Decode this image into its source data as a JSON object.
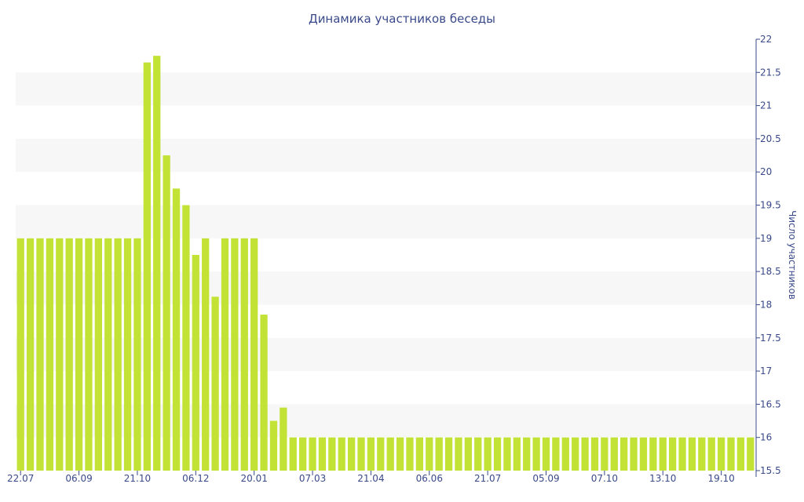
{
  "chart_data": {
    "type": "bar",
    "title": "Динамика участников беседы",
    "ylabel": "Число участников",
    "ylim": [
      15.5,
      22
    ],
    "y_axis_side": "right",
    "y_ticks": [
      "15.5",
      "16",
      "16.5",
      "17",
      "17.5",
      "18",
      "18.5",
      "19",
      "19.5",
      "20",
      "20.5",
      "21",
      "21.5",
      "22"
    ],
    "x_tick_labels": [
      "22.07",
      "06.09",
      "21.10",
      "06.12",
      "20.01",
      "07.03",
      "21.04",
      "06.06",
      "21.07",
      "05.09",
      "07.10",
      "13.10",
      "19.10"
    ],
    "x_tick_bar_index": [
      0,
      6,
      12,
      18,
      24,
      30,
      36,
      42,
      48,
      54,
      60,
      66,
      72
    ],
    "values": [
      19,
      19,
      19,
      19,
      19,
      19,
      19,
      19,
      19,
      19,
      19,
      19,
      19,
      21.65,
      21.75,
      20.25,
      19.75,
      19.5,
      18.75,
      19,
      18.12,
      19,
      19,
      19,
      19,
      17.85,
      16.25,
      16.45,
      16,
      16,
      16,
      16,
      16,
      16,
      16,
      16,
      16,
      16,
      16,
      16,
      16,
      16,
      16,
      16,
      16,
      16,
      16,
      16,
      16,
      16,
      16,
      16,
      16,
      16,
      16,
      16,
      16,
      16,
      16,
      16,
      16,
      16,
      16,
      16,
      16,
      16,
      16,
      16,
      16,
      16,
      16,
      16,
      16,
      16,
      16,
      16
    ],
    "colors": {
      "bar": "#c2e236",
      "text": "#3a4a8a",
      "band": "#f7f7f7"
    },
    "grid": "alternating horizontal bands"
  }
}
